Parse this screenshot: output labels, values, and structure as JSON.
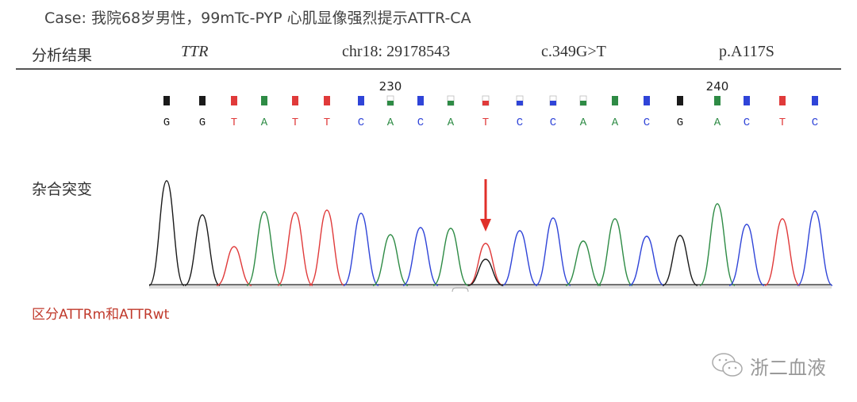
{
  "case_text": "Case: 我院68岁男性，99mTc-PYP 心肌显像强烈提示ATTR-CA",
  "header": {
    "label": "分析结果",
    "gene": "TTR",
    "position": "chr18: 29178543",
    "cdna": "c.349G>T",
    "protein": "p.A117S"
  },
  "heterozygous_label": "杂合突变",
  "distinguish_text": "区分ATTRm和ATTRwt",
  "watermark": "浙二血液",
  "watermark_icon": "wechat-icon",
  "base_colors": {
    "G": "#1a1a1a",
    "A": "#2e8b45",
    "T": "#e03a3a",
    "C": "#2f44d8"
  },
  "arrow_color": "#e0302a",
  "chromatogram": {
    "position_labels": [
      {
        "index": 7,
        "text": "230"
      },
      {
        "index": 17,
        "text": "240"
      }
    ],
    "bases": [
      "G",
      "G",
      "T",
      "A",
      "T",
      "T",
      "C",
      "A",
      "C",
      "A",
      "T",
      "C",
      "C",
      "A",
      "A",
      "C",
      "G",
      "A",
      "C",
      "T",
      "C"
    ],
    "peak_intensity": [
      132,
      89,
      49,
      93,
      92,
      95,
      91,
      64,
      73,
      72,
      53,
      69,
      85,
      56,
      84,
      62,
      63,
      103,
      77,
      84,
      94
    ],
    "mutation": {
      "index": 10,
      "primary": "T",
      "secondary": "G",
      "secondary_intensity": 33
    }
  }
}
